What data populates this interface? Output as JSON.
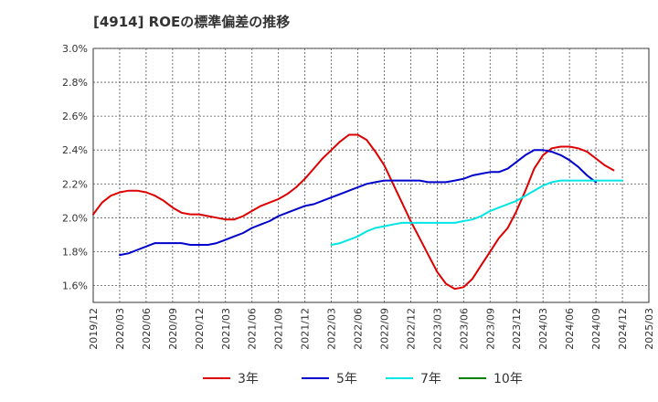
{
  "chart_data": {
    "type": "line",
    "title": "[4914]  ROEの標準偏差の推移",
    "xlabel": "",
    "ylabel": "",
    "ylim": [
      1.5,
      3.0
    ],
    "yticks": [
      "1.6%",
      "1.8%",
      "2.0%",
      "2.2%",
      "2.4%",
      "2.6%",
      "2.8%",
      "3.0%"
    ],
    "ytick_values": [
      1.6,
      1.8,
      2.0,
      2.2,
      2.4,
      2.6,
      2.8,
      3.0
    ],
    "xticks": [
      "2019/12",
      "2020/03",
      "2020/06",
      "2020/09",
      "2020/12",
      "2021/03",
      "2021/06",
      "2021/09",
      "2021/12",
      "2022/03",
      "2022/06",
      "2022/09",
      "2022/12",
      "2023/03",
      "2023/06",
      "2023/09",
      "2023/12",
      "2024/03",
      "2024/06",
      "2024/09",
      "2024/12",
      "2025/03"
    ],
    "grid": true,
    "legend_position": "bottom",
    "series": [
      {
        "name": "3年",
        "color": "#dd0000",
        "start_month_index": 0,
        "values": [
          2.02,
          2.09,
          2.13,
          2.15,
          2.16,
          2.16,
          2.15,
          2.13,
          2.1,
          2.06,
          2.03,
          2.02,
          2.02,
          2.01,
          2.0,
          1.99,
          1.99,
          2.01,
          2.04,
          2.07,
          2.09,
          2.11,
          2.14,
          2.18,
          2.23,
          2.29,
          2.35,
          2.4,
          2.45,
          2.49,
          2.49,
          2.46,
          2.39,
          2.31,
          2.2,
          2.09,
          1.98,
          1.88,
          1.78,
          1.68,
          1.61,
          1.58,
          1.59,
          1.64,
          1.72,
          1.8,
          1.88,
          1.94,
          2.04,
          2.16,
          2.29,
          2.37,
          2.41,
          2.42,
          2.42,
          2.41,
          2.39,
          2.35,
          2.31,
          2.28
        ]
      },
      {
        "name": "5年",
        "color": "#0000cc",
        "start_month_index": 3,
        "values": [
          1.78,
          1.79,
          1.81,
          1.83,
          1.85,
          1.85,
          1.85,
          1.85,
          1.84,
          1.84,
          1.84,
          1.85,
          1.87,
          1.89,
          1.91,
          1.94,
          1.96,
          1.98,
          2.01,
          2.03,
          2.05,
          2.07,
          2.08,
          2.1,
          2.12,
          2.14,
          2.16,
          2.18,
          2.2,
          2.21,
          2.22,
          2.22,
          2.22,
          2.22,
          2.22,
          2.21,
          2.21,
          2.21,
          2.22,
          2.23,
          2.25,
          2.26,
          2.27,
          2.27,
          2.29,
          2.33,
          2.37,
          2.4,
          2.4,
          2.39,
          2.37,
          2.34,
          2.3,
          2.25,
          2.21
        ]
      },
      {
        "name": "7年",
        "color": "#00e5e5",
        "start_month_index": 27,
        "values": [
          1.84,
          1.85,
          1.87,
          1.89,
          1.92,
          1.94,
          1.95,
          1.96,
          1.97,
          1.97,
          1.97,
          1.97,
          1.97,
          1.97,
          1.97,
          1.98,
          1.99,
          2.01,
          2.04,
          2.06,
          2.08,
          2.1,
          2.13,
          2.16,
          2.19,
          2.21,
          2.22,
          2.22,
          2.22,
          2.22,
          2.22,
          2.22,
          2.22,
          2.22
        ]
      },
      {
        "name": "10年",
        "color": "#008000",
        "start_month_index": 0,
        "values": []
      }
    ]
  }
}
